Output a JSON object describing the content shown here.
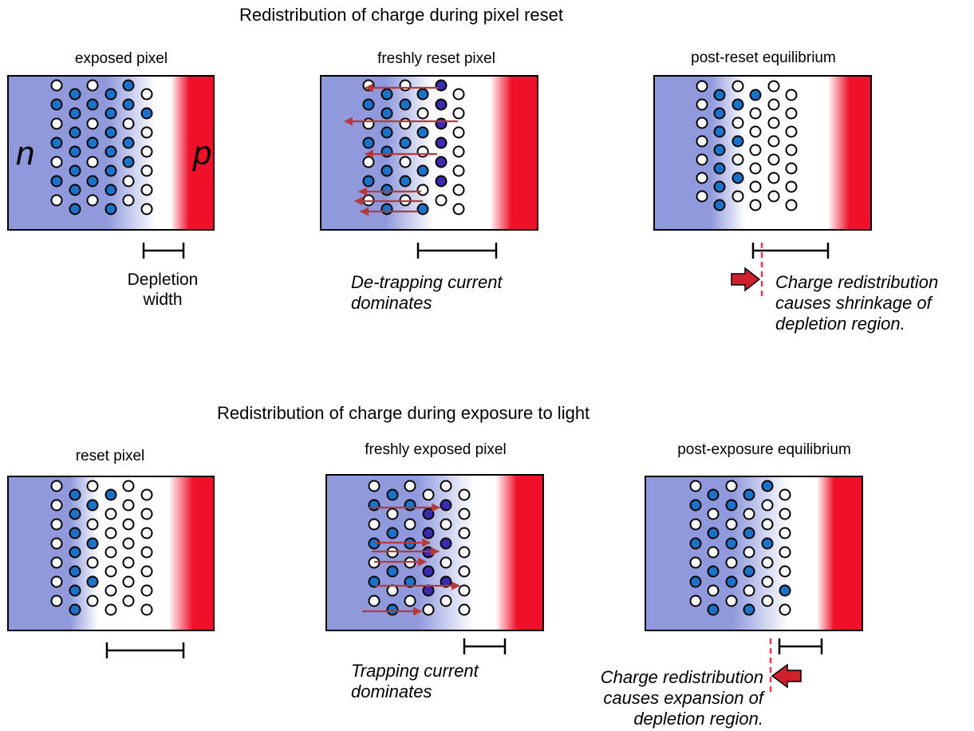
{
  "colors": {
    "n_region": "#8f99dc",
    "p_region": "#f0102a",
    "filled_dot": "#1b73c9",
    "arrow": "#b53a3a",
    "dashed": "#e8384e"
  },
  "top": {
    "title": "Redistribution of charge during pixel reset",
    "panels": [
      {
        "title": "exposed pixel",
        "n_label": "n",
        "p_label": "p"
      },
      {
        "title": "freshly reset pixel"
      },
      {
        "title": "post-reset equilibrium"
      }
    ],
    "annotations": {
      "depletion_line1": "Depletion",
      "depletion_line2": "width",
      "detrapping_line1": "De-trapping current",
      "detrapping_line2": "dominates",
      "shrink_line1": "Charge redistribution",
      "shrink_line2": "causes shrinkage of",
      "shrink_line3": "depletion region."
    }
  },
  "bottom": {
    "title": "Redistribution of charge during exposure to light",
    "panels": [
      {
        "title": "reset pixel"
      },
      {
        "title": "freshly exposed pixel"
      },
      {
        "title": "post-exposure equilibrium"
      }
    ],
    "annotations": {
      "trapping_line1": "Trapping current",
      "trapping_line2": "dominates",
      "expand_line1": "Charge redistribution",
      "expand_line2": "causes expansion of",
      "expand_line3": "depletion region."
    }
  }
}
